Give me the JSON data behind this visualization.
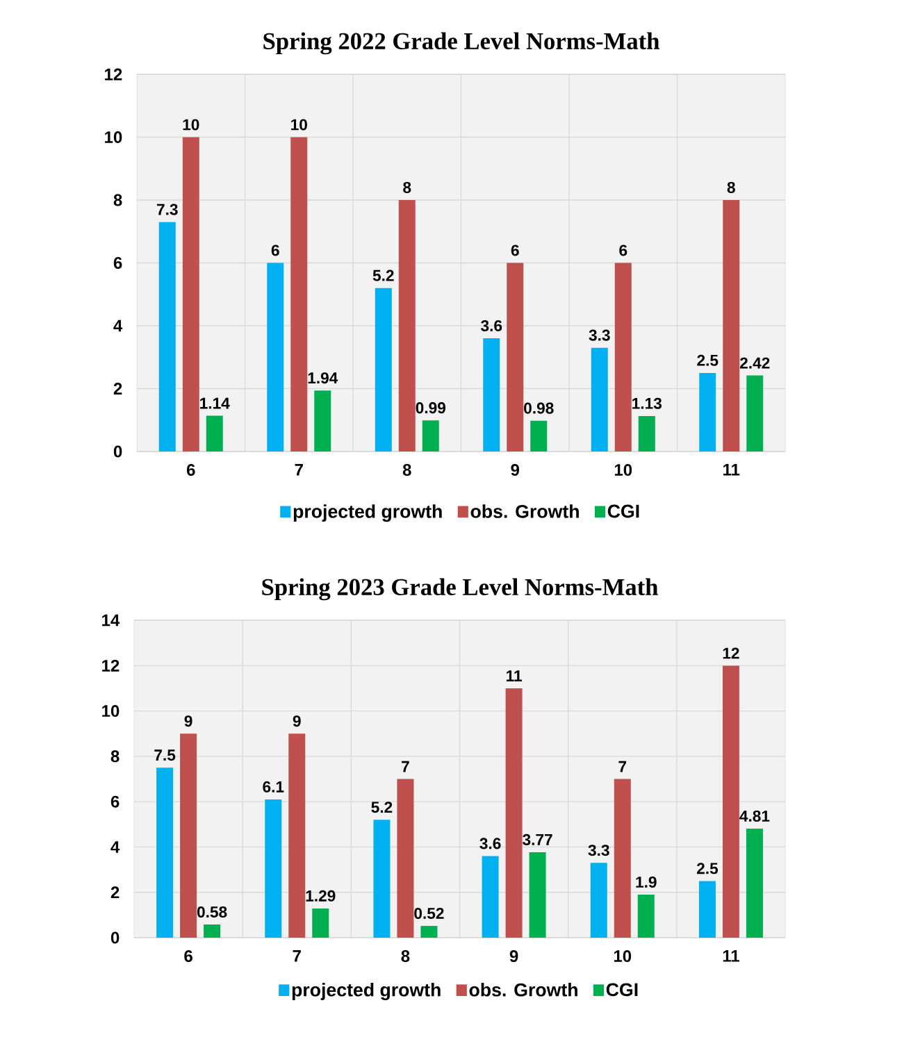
{
  "chart_data": [
    {
      "type": "bar",
      "title": "Spring 2022 Grade Level Norms-Math",
      "categories": [
        "6",
        "7",
        "8",
        "9",
        "10",
        "11"
      ],
      "series": [
        {
          "name": "projected growth",
          "color": "#00b0f0",
          "values": [
            7.3,
            6,
            5.2,
            3.6,
            3.3,
            2.5
          ]
        },
        {
          "name": "obs. Growth",
          "color": "#c0504d",
          "values": [
            10,
            10,
            8,
            6,
            6,
            8
          ]
        },
        {
          "name": "CGI",
          "color": "#00b050",
          "values": [
            1.14,
            1.94,
            0.99,
            0.98,
            1.13,
            2.42
          ]
        }
      ],
      "ylim": [
        0,
        12
      ],
      "yticks": [
        0,
        2,
        4,
        6,
        8,
        10,
        12
      ],
      "grid": true,
      "legend": "bottom",
      "data_labels": true
    },
    {
      "type": "bar",
      "title": "Spring 2023 Grade Level Norms-Math",
      "categories": [
        "6",
        "7",
        "8",
        "9",
        "10",
        "11"
      ],
      "series": [
        {
          "name": "projected growth",
          "color": "#00b0f0",
          "values": [
            7.5,
            6.1,
            5.2,
            3.6,
            3.3,
            2.5
          ]
        },
        {
          "name": "obs. Growth",
          "color": "#c0504d",
          "values": [
            9,
            9,
            7,
            11,
            7,
            12
          ]
        },
        {
          "name": "CGI",
          "color": "#00b050",
          "values": [
            0.58,
            1.29,
            0.52,
            3.77,
            1.9,
            4.81
          ]
        }
      ],
      "ylim": [
        0,
        14
      ],
      "yticks": [
        0,
        2,
        4,
        6,
        8,
        10,
        12,
        14
      ],
      "grid": true,
      "legend": "bottom",
      "data_labels": true
    }
  ]
}
